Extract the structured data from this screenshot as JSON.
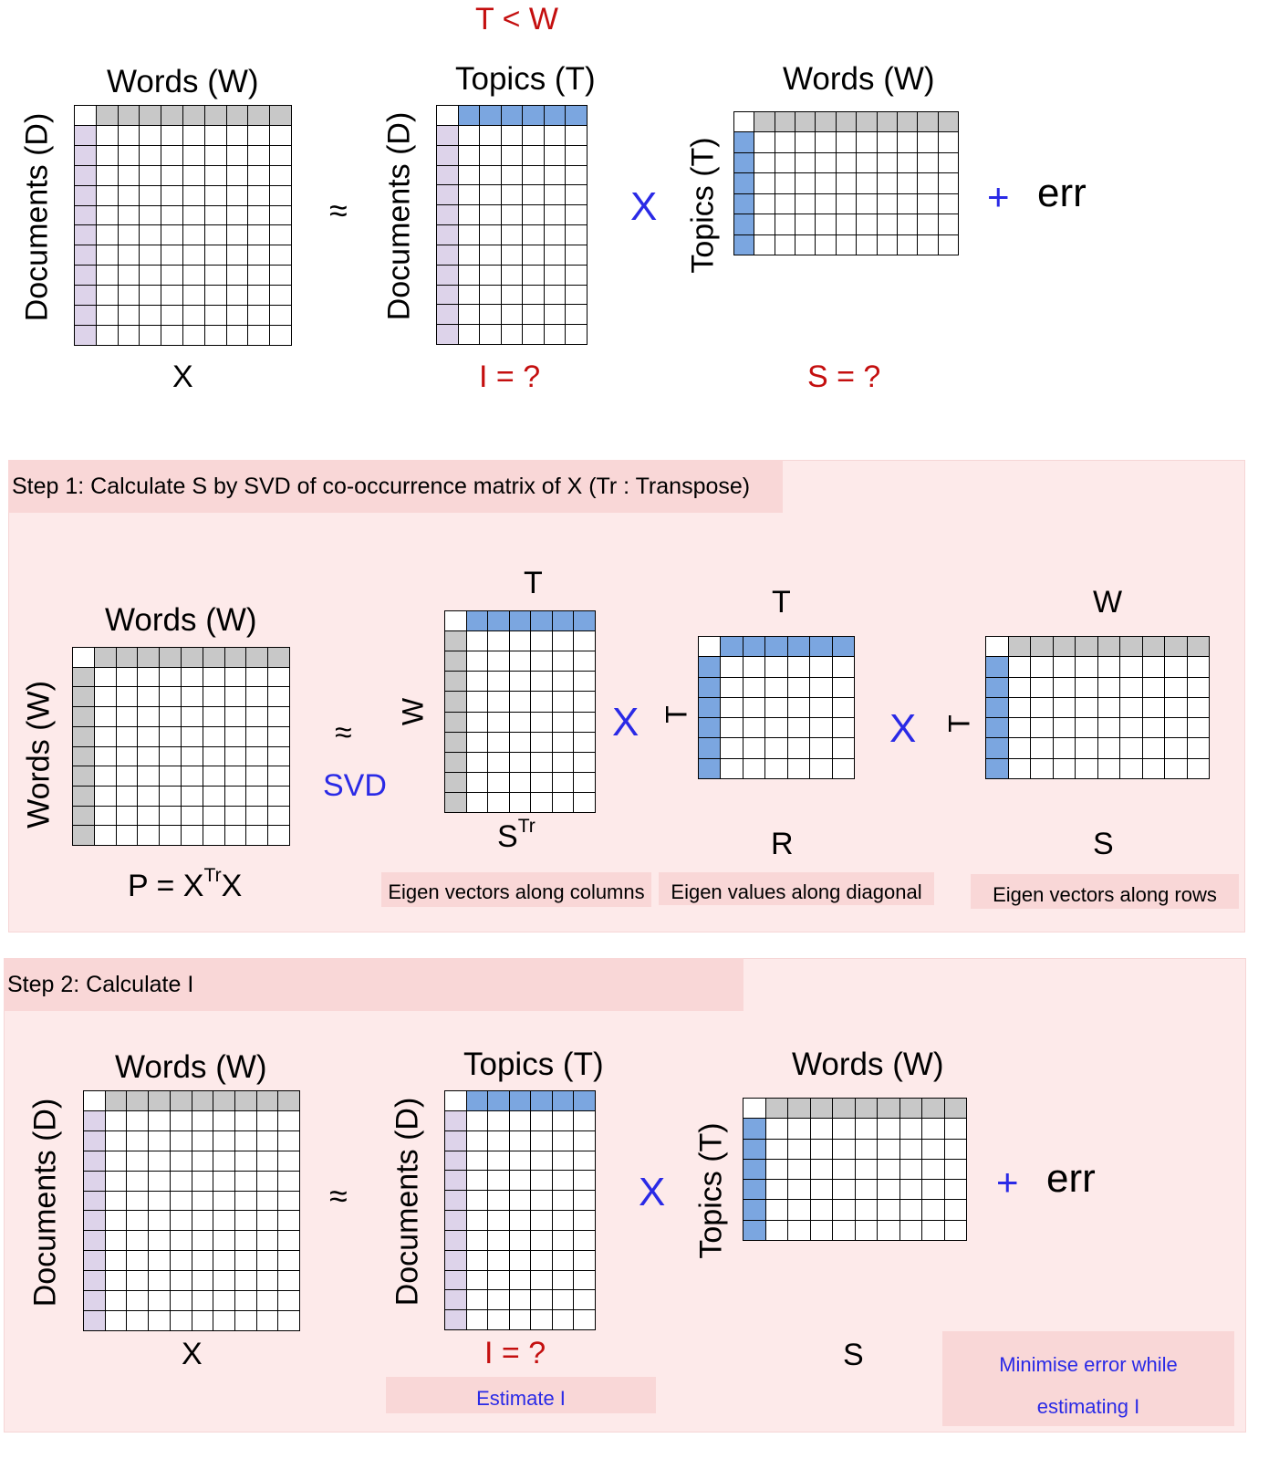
{
  "top": {
    "condition": "T < W",
    "x_cols": "Words (W)",
    "x_rows": "Documents (D)",
    "x_name": "X",
    "approx": "≈",
    "i_cols": "Topics (T)",
    "i_rows": "Documents (D)",
    "i_name": "I = ?",
    "times": "X",
    "s_cols": "Words (W)",
    "s_rows": "Topics (T)",
    "s_name": "S = ?",
    "plus": "+",
    "err": "err"
  },
  "step1": {
    "header": "Step 1: Calculate S by SVD of co-occurrence matrix of X (Tr : Transpose)",
    "p_cols": "Words (W)",
    "p_rows": "Words (W)",
    "p_name_base": "P = X",
    "p_name_sup": "Tr",
    "p_name_end": "X",
    "approx": "≈",
    "svd": "SVD",
    "st_top": "T",
    "st_side": "W",
    "st_name_base": "S",
    "st_name_sup": "Tr",
    "st_note": "Eigen vectors along columns",
    "times1": "X",
    "r_top": "T",
    "r_side": "T",
    "r_name": "R",
    "r_note": "Eigen values along diagonal",
    "times2": "X",
    "s_top": "W",
    "s_side": "T",
    "s_name": "S",
    "s_note": "Eigen vectors along rows"
  },
  "step2": {
    "header": "Step 2: Calculate I",
    "x_cols": "Words (W)",
    "x_rows": "Documents (D)",
    "x_name": "X",
    "approx": "≈",
    "i_cols": "Topics (T)",
    "i_rows": "Documents (D)",
    "i_name": "I = ?",
    "i_note": "Estimate I",
    "times": "X",
    "s_cols": "Words (W)",
    "s_rows": "Topics (T)",
    "s_name": "S",
    "plus": "+",
    "err": "err",
    "note_line1": "Minimise error while",
    "note_line2": "estimating I"
  },
  "colors": {
    "gray_header": "#c8c8c8",
    "blue_header": "#7ba6e0",
    "lavender_header": "#ddd3ea",
    "panel": "#fdeaea",
    "label_red": "#c40f0f",
    "label_blue": "#2a2ae6"
  },
  "matrices": [
    {
      "id": "top-x",
      "cols": 10,
      "rows": 12,
      "top": "gray",
      "left": "lavender"
    },
    {
      "id": "top-i",
      "cols": 7,
      "rows": 12,
      "top": "blue",
      "left": "lavender"
    },
    {
      "id": "top-s",
      "cols": 11,
      "rows": 7,
      "top": "gray",
      "left": "blue"
    },
    {
      "id": "s1-p",
      "cols": 10,
      "rows": 10,
      "top": "gray",
      "left": "gray"
    },
    {
      "id": "s1-st",
      "cols": 7,
      "rows": 10,
      "top": "blue",
      "left": "gray"
    },
    {
      "id": "s1-r",
      "cols": 7,
      "rows": 7,
      "top": "blue",
      "left": "blue"
    },
    {
      "id": "s1-s",
      "cols": 10,
      "rows": 7,
      "top": "gray",
      "left": "blue"
    },
    {
      "id": "s2-x",
      "cols": 10,
      "rows": 12,
      "top": "gray",
      "left": "lavender"
    },
    {
      "id": "s2-i",
      "cols": 7,
      "rows": 12,
      "top": "blue",
      "left": "lavender"
    },
    {
      "id": "s2-s",
      "cols": 10,
      "rows": 7,
      "top": "gray",
      "left": "blue"
    }
  ]
}
